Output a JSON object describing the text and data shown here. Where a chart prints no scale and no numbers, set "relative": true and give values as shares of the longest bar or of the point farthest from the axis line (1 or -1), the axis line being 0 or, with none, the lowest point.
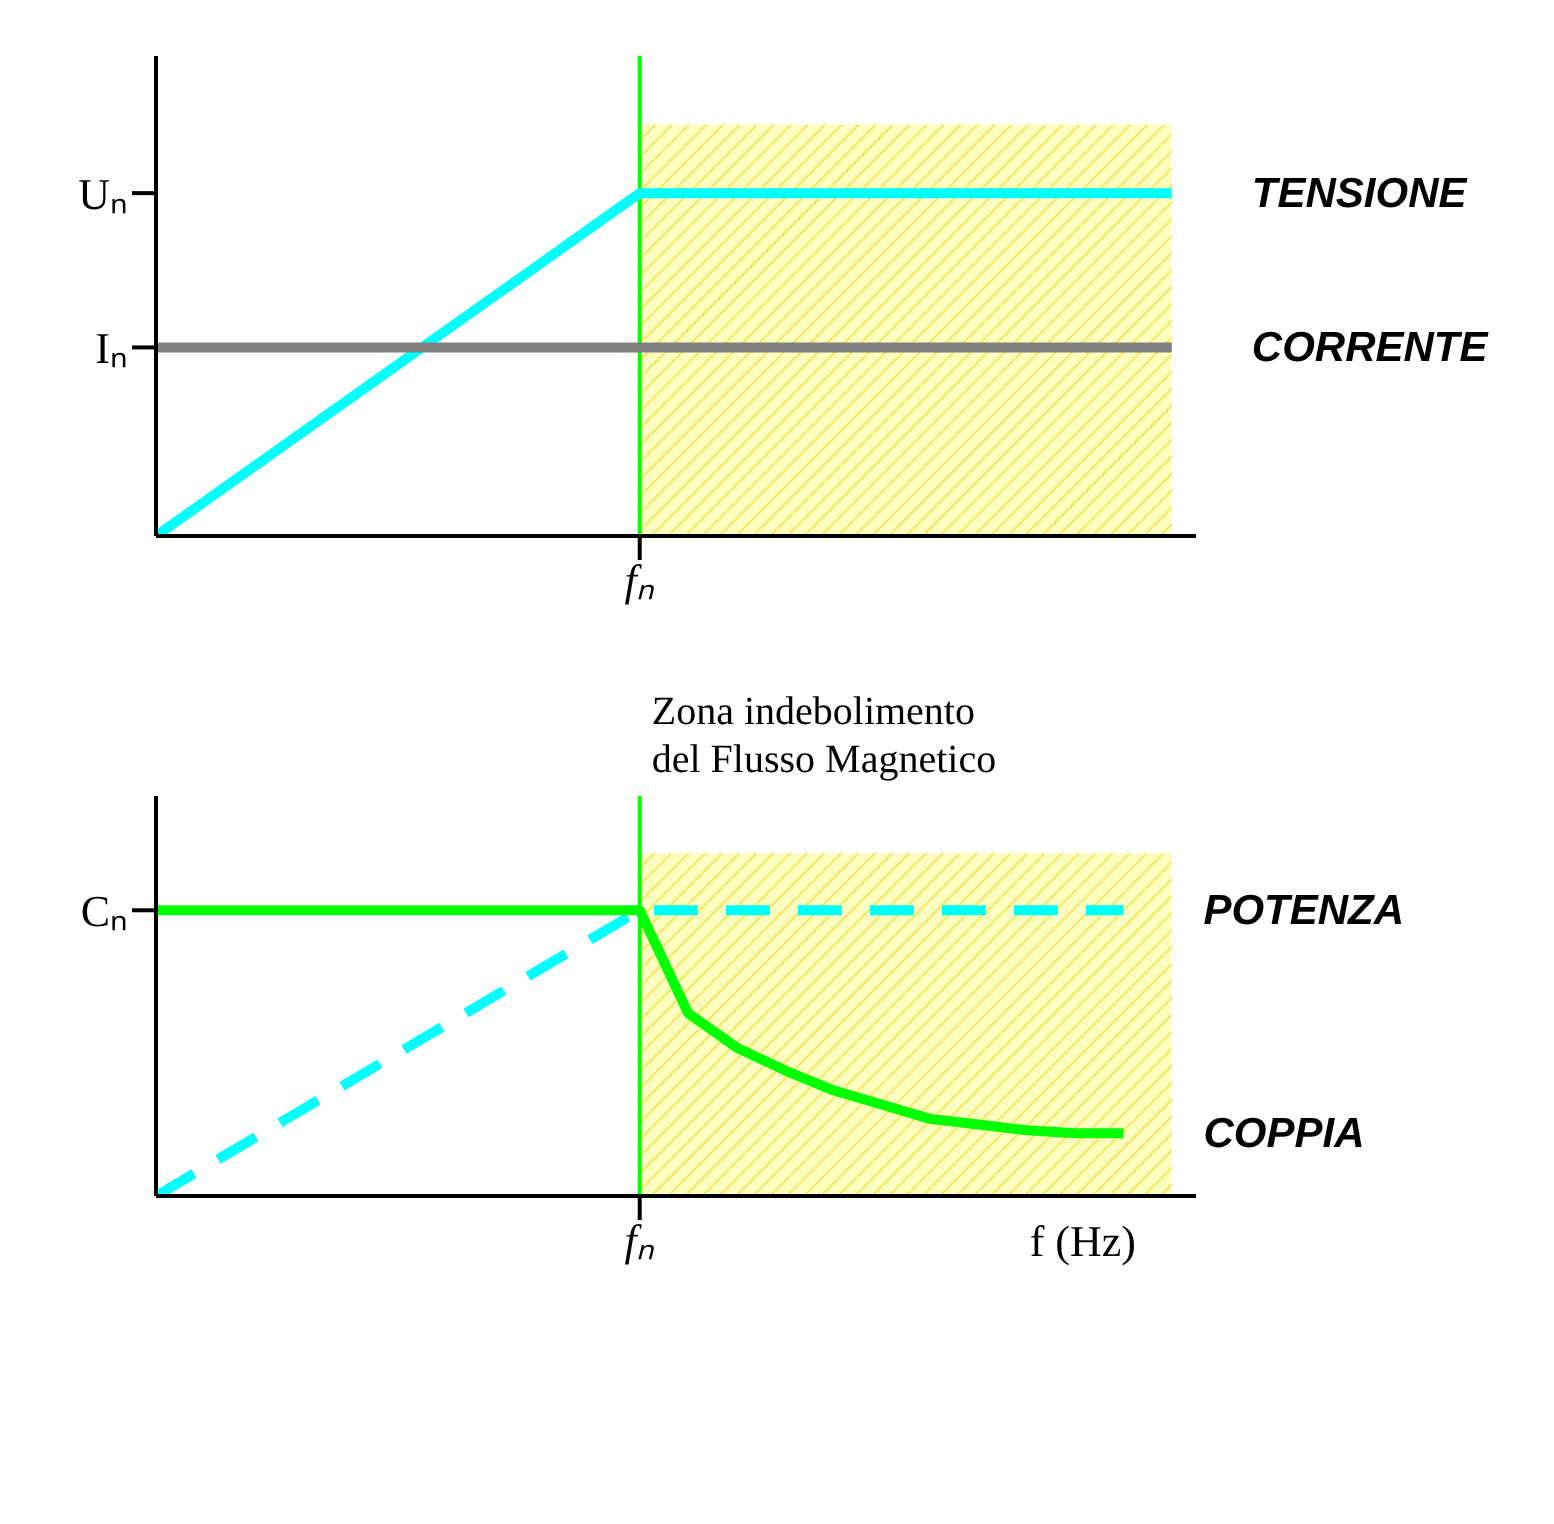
{
  "chart_data": [
    {
      "type": "line",
      "relative": true,
      "marker": "none",
      "grid": false,
      "legend": false,
      "categories": [
        null,
        null,
        null,
        null,
        null,
        null,
        null,
        null,
        null,
        null,
        null,
        null,
        null,
        null,
        null,
        null,
        null,
        null,
        null,
        null,
        null,
        null
      ],
      "annotations": [
        "Uₙ",
        "Iₙ",
        "fₙ"
      ],
      "series": [
        {
          "name": "TENSIONE",
          "color": "#00ffff",
          "line_style": "solid",
          "values": [
            0,
            0.1,
            0.2,
            0.3,
            0.4,
            0.5,
            0.6,
            0.7,
            0.8,
            0.9,
            1,
            1,
            1,
            1,
            1,
            1,
            1,
            1,
            1,
            1,
            1,
            1
          ]
        },
        {
          "name": "CORRENTE",
          "color": "#808080",
          "line_style": "solid",
          "values": [
            0.55,
            0.55,
            0.55,
            0.55,
            0.55,
            0.55,
            0.55,
            0.55,
            0.55,
            0.55,
            0.55,
            0.55,
            0.55,
            0.55,
            0.55,
            0.55,
            0.55,
            0.55,
            0.55,
            0.55,
            0.55,
            0.55
          ]
        }
      ],
      "ref_lines": [
        {
          "axis": "x",
          "color": "#00ff00"
        }
      ]
    },
    {
      "type": "line",
      "relative": true,
      "xlabel": "f (Hz)",
      "marker": "none",
      "grid": false,
      "legend": false,
      "categories": [
        null,
        null,
        null,
        null,
        null,
        null,
        null,
        null,
        null,
        null,
        null,
        null,
        null,
        null,
        null,
        null,
        null,
        null,
        null,
        null,
        null,
        null
      ],
      "annotations": [
        "Cₙ",
        "fₙ"
      ],
      "series": [
        {
          "name": "POTENZA",
          "color": "#00ffff",
          "line_style": "dashed",
          "values": [
            0,
            0.1,
            0.2,
            0.3,
            0.4,
            0.5,
            0.6,
            0.7,
            0.8,
            0.9,
            1,
            1,
            1,
            1,
            1,
            1,
            1,
            1,
            1,
            1,
            1,
            null
          ]
        },
        {
          "name": "COPPIA",
          "color": "#00ff00",
          "line_style": "solid",
          "values": [
            1,
            1,
            1,
            1,
            1,
            1,
            1,
            1,
            1,
            1,
            1,
            0.64,
            0.52,
            0.44,
            0.37,
            0.32,
            0.27,
            0.25,
            0.23,
            0.22,
            0.22,
            null
          ]
        }
      ],
      "ref_lines": [
        {
          "axis": "x",
          "color": "#00ff00",
          "label": "Zona indebolimento del Flusso Magnetico"
        }
      ]
    }
  ]
}
